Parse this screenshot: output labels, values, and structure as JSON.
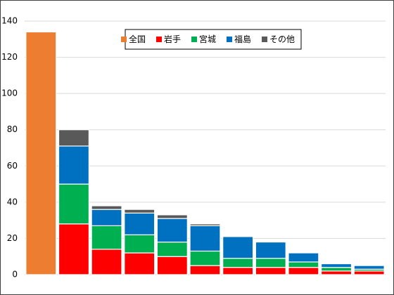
{
  "chart_data": {
    "type": "stacked_bar",
    "categories": [
      null,
      null,
      null,
      null,
      null,
      null,
      null,
      null,
      null,
      null,
      null
    ],
    "series": [
      {
        "name": "全国",
        "color": "#ed7d31",
        "values": [
          134,
          null,
          null,
          null,
          null,
          null,
          null,
          null,
          null,
          null,
          null
        ]
      },
      {
        "name": "岩手",
        "color": "#ff0000",
        "values": [
          null,
          28,
          14,
          12,
          10,
          5,
          4,
          4,
          4,
          2,
          2
        ]
      },
      {
        "name": "宮城",
        "color": "#00b050",
        "values": [
          null,
          22,
          13,
          10,
          8,
          8,
          5,
          5,
          3,
          2,
          1
        ]
      },
      {
        "name": "福島",
        "color": "#0070c0",
        "values": [
          null,
          21,
          9,
          12,
          13,
          14,
          12,
          9,
          5,
          2,
          2
        ]
      },
      {
        "name": "その他",
        "color": "#595959",
        "values": [
          null,
          9,
          2,
          2,
          2,
          1,
          0,
          0,
          0,
          0,
          0
        ]
      }
    ],
    "ylim": [
      0,
      140
    ],
    "yticks": [
      0,
      20,
      40,
      60,
      80,
      100,
      120,
      140
    ],
    "grid": true,
    "legend": "top"
  }
}
